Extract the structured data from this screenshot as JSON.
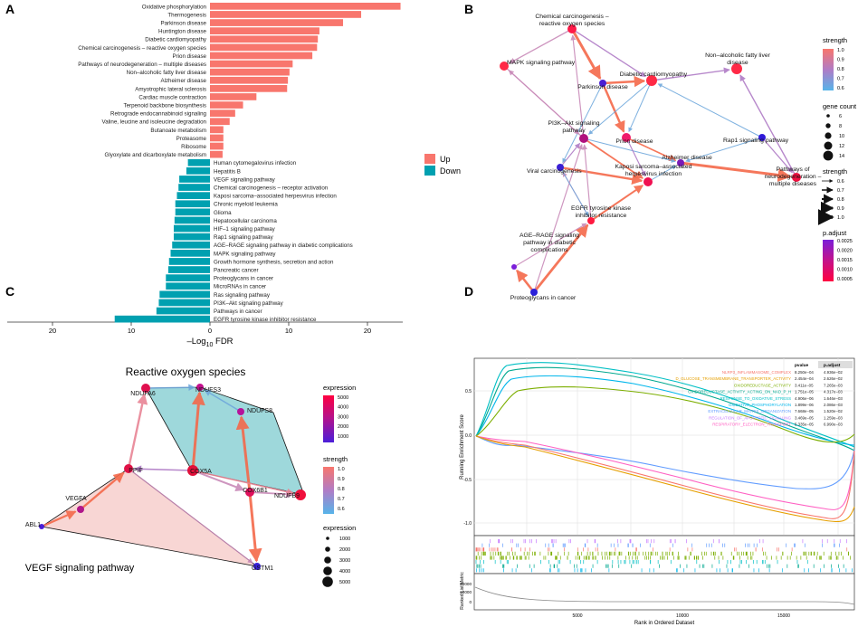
{
  "colors": {
    "up": "#F8766D",
    "down": "#00A0B0",
    "edge_low": "#6FA8DC",
    "edge_high": "#F4694A",
    "node_purple": "#7B1FD9",
    "node_red": "#F0103C",
    "ros_fill": "#9ED8DB",
    "vegf_fill": "#F8D6D4"
  },
  "panels": {
    "A": "A",
    "B": "B",
    "C": "C",
    "D": "D"
  },
  "chart_data": [
    {
      "type": "bar",
      "title": "",
      "xlabel": "-Log10 FDR",
      "xlabel_main": "–Log",
      "xlabel_sub": "10",
      "xlabel_tail": " FDR",
      "xaxis_ticks": [
        "20",
        "10",
        "0",
        "10",
        "20"
      ],
      "xaxis_values": [
        -20,
        -10,
        0,
        10,
        20
      ],
      "xlim": [
        -24,
        24
      ],
      "legend": [
        {
          "label": "Up",
          "color": "#F8766D"
        },
        {
          "label": "Down",
          "color": "#00A0B0"
        }
      ],
      "series": [
        {
          "name": "Up",
          "categories": [
            "Oxidative phosphorylation",
            "Thermogenesis",
            "Parkinson disease",
            "Huntington disease",
            "Diabetic cardiomyopathy",
            "Chemical carcinogenesis – reactive oxygen species",
            "Prion disease",
            "Pathways of neurodegeneration – multiple diseases",
            "Non–alcoholic fatty liver disease",
            "Alzheimer disease",
            "Amyotrophic lateral sclerosis",
            "Cardiac muscle contraction",
            "Terpenoid backbone biosynthesis",
            "Retrograde endocannabinoid signaling",
            "Valine, leucine and isoleucine degradation",
            "Butanoate metabolism",
            "Proteasome",
            "Ribosome",
            "Glyoxylate and dicarboxylate metabolism"
          ],
          "values": [
            24.2,
            19.2,
            16.9,
            13.9,
            13.7,
            13.6,
            13.0,
            10.5,
            10.1,
            9.9,
            9.8,
            5.9,
            4.2,
            3.2,
            2.5,
            1.7,
            1.7,
            1.7,
            1.6
          ]
        },
        {
          "name": "Down",
          "categories": [
            "Human cytomegalovirus infection",
            "Hepatitis B",
            "VEGF signaling pathway",
            "Chemical carcinogenesis – receptor activation",
            "Kaposi sarcoma–associated herpesvirus infection",
            "Chronic myeloid leukemia",
            "Glioma",
            "Hepatocellular carcinoma",
            "HIF–1 signaling pathway",
            "Rap1 signaling pathway",
            "AGE–RAGE signaling pathway in diabetic complications",
            "MAPK signaling pathway",
            "Growth hormone synthesis, secretion and action",
            "Pancreatic cancer",
            "Proteoglycans in cancer",
            "MicroRNAs in cancer",
            "Ras signaling pathway",
            "PI3K–Akt signaling pathway",
            "Pathways in cancer",
            "EGFR tyrosine kinase inhibitor resistance"
          ],
          "values": [
            -2.8,
            -3.0,
            -3.9,
            -4.0,
            -4.2,
            -4.4,
            -4.4,
            -4.5,
            -4.6,
            -4.6,
            -4.8,
            -5.0,
            -5.2,
            -5.3,
            -5.6,
            -5.6,
            -6.4,
            -6.5,
            -6.8,
            -12.1
          ]
        }
      ]
    },
    {
      "type": "network",
      "nodes": [
        {
          "label": "Chemical carcinogenesis –\nreactive oxygen species"
        },
        {
          "label": "MAPK signaling pathway"
        },
        {
          "label": "Non–alcoholic fatty liver\ndisease"
        },
        {
          "label": "Diabetic cardiomyopathy"
        },
        {
          "label": "Parkinson disease"
        },
        {
          "label": "PI3K–Akt signaling\npathway"
        },
        {
          "label": "Prion disease"
        },
        {
          "label": "Alzheimer disease"
        },
        {
          "label": "Rap1 signaling pathway"
        },
        {
          "label": "Kaposi sarcoma–associated\nherpesvirus infection"
        },
        {
          "label": "Viral carcinogenesis"
        },
        {
          "label": "Pathways of\nneurodegeneration –\nmultiple diseases"
        },
        {
          "label": "EGFR tyrosine kinase\ninhibitor resistance"
        },
        {
          "label": "AGE–RAGE signaling\npathway in diabetic\ncomplications"
        },
        {
          "label": "Proteoglycans in cancer"
        }
      ],
      "legend": {
        "strength_title": "strength",
        "strength_ticks": [
          "1.0",
          "0.9",
          "0.8",
          "0.7",
          "0.6"
        ],
        "gene_count_title": "gene count",
        "gene_count_ticks": [
          "6",
          "8",
          "10",
          "12",
          "14"
        ],
        "strength2_title": "strength",
        "strength2_ticks": [
          "0.6",
          "0.7",
          "0.8",
          "0.9",
          "1.0"
        ],
        "padj_title": "p.adjust",
        "padj_ticks": [
          "0.0025",
          "0.0020",
          "0.0015",
          "0.0010",
          "0.0005"
        ]
      }
    },
    {
      "type": "network",
      "groups": [
        "Reactive oxygen species",
        "VEGF signaling pathway"
      ],
      "nodes": [
        "NDUFA6",
        "NDUFS3",
        "NDUFS8",
        "PPIF",
        "COX5A",
        "COX6B1",
        "NDUFB9",
        "VEGFA",
        "ABL1",
        "GSTM1"
      ],
      "legend": {
        "expression_title": "expression",
        "expression_ticks": [
          "5000",
          "4000",
          "3000",
          "2000",
          "1000"
        ],
        "strength_title": "strength",
        "strength_ticks": [
          "1.0",
          "0.9",
          "0.8",
          "0.7",
          "0.6"
        ],
        "size_title": "expression",
        "size_ticks": [
          "1000",
          "2000",
          "3000",
          "4000",
          "5000"
        ]
      }
    },
    {
      "type": "line",
      "ylabel": "Running Enrichment Score",
      "ylabel_bottom": "Ranked List Metric",
      "xlabel": "Rank in Ordered Dataset",
      "x_ticks": [
        "5000",
        "10000",
        "15000"
      ],
      "y_ticks": [
        "0.5",
        "0.0",
        "-0.5",
        "-1.0"
      ],
      "metric_ticks": [
        "20000",
        "10000",
        "0"
      ],
      "table_header": [
        "pvalue",
        "p.adjust"
      ],
      "series": [
        {
          "name": "NLRP3_INFLAMMASOME_COMPLEX",
          "color": "#F8766D",
          "pvalue": "8.250e−04",
          "padjust": "4.936e−02"
        },
        {
          "name": "D_GLUCOSE_TRANSMEMBRANE_TRANSPORTER_ACTIVITY",
          "color": "#E69F00",
          "pvalue": "2.454e−04",
          "padjust": "2.626e−02"
        },
        {
          "name": "OXIDOREDUCTASE_ACTIVITY",
          "color": "#7CAE00",
          "pvalue": "3.411e−05",
          "padjust": "7.265e−03"
        },
        {
          "name": "OXIDOREDUCTASE_ACTIVITY_ACTING_ON_NAD_P_H",
          "color": "#00A88F",
          "pvalue": "1.751e−05",
          "padjust": "4.317e−03"
        },
        {
          "name": "RESPONSE_TO_OXIDATIVE_STRESS",
          "color": "#00BFC4",
          "pvalue": "4.906e−06",
          "padjust": "1.646e−03"
        },
        {
          "name": "OXIDATIVE_PHOSPHORYLATION",
          "color": "#00B6EB",
          "pvalue": "1.899e−06",
          "padjust": "2.086e−03"
        },
        {
          "name": "EXTRACELLULAR_MATRIX_ORGANIZATION",
          "color": "#619CFF",
          "pvalue": "7.668e−05",
          "padjust": "1.520e−02"
        },
        {
          "name": "REGULATION_OF_APOPTOTIC_SIGNALING",
          "color": "#C77CFF",
          "pvalue": "3.469e−05",
          "padjust": "1.259e−03"
        },
        {
          "name": "RESPIRATORY_ELECTRON_TRANSPORT",
          "color": "#FF61C3",
          "pvalue": "5.335e−05",
          "padjust": "6.990e−03"
        }
      ]
    }
  ]
}
